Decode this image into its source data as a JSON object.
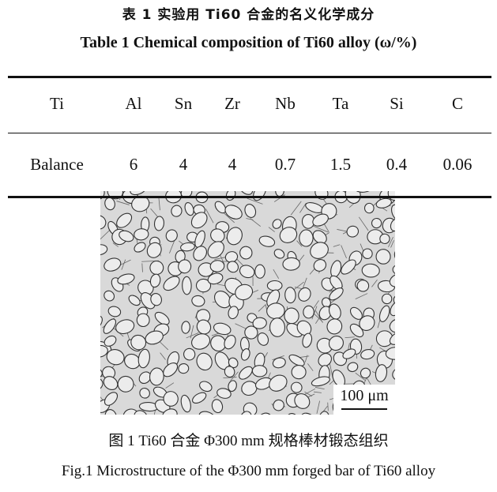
{
  "table": {
    "title_cn": "表 1   实验用 Ti60 合金的名义化学成分",
    "title_en": "Table 1    Chemical composition of Ti60 alloy (ω/%)",
    "headers": [
      "Ti",
      "Al",
      "Sn",
      "Zr",
      "Nb",
      "Ta",
      "Si",
      "C"
    ],
    "values": [
      "Balance",
      "6",
      "4",
      "4",
      "0.7",
      "1.5",
      "0.4",
      "0.06"
    ]
  },
  "figure": {
    "scale_bar": "100 μm",
    "caption_cn": "图 1   Ti60 合金 Φ300 mm 规格棒材锻态组织",
    "caption_en": "Fig.1    Microstructure of the Φ300 mm forged bar of Ti60 alloy"
  }
}
